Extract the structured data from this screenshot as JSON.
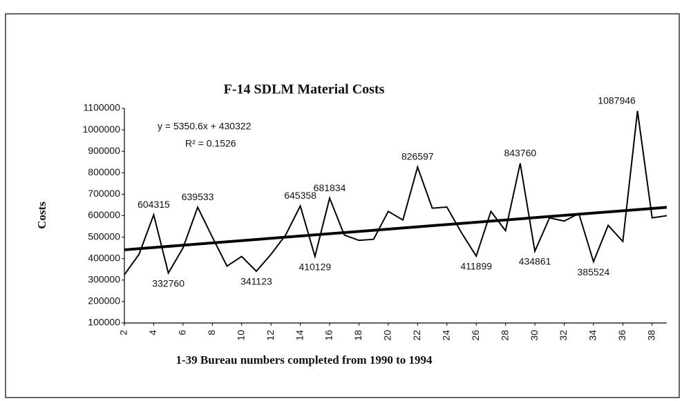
{
  "chart_data": {
    "type": "line",
    "title": "F-14 SDLM Material Costs",
    "x_label": "1-39 Bureau numbers completed from 1990 to 1994",
    "y_label": "Costs",
    "x": [
      2,
      3,
      4,
      5,
      6,
      7,
      8,
      9,
      10,
      11,
      12,
      13,
      14,
      15,
      16,
      17,
      18,
      19,
      20,
      21,
      22,
      23,
      24,
      25,
      26,
      27,
      28,
      29,
      30,
      31,
      32,
      33,
      34,
      35,
      36,
      37,
      38,
      39
    ],
    "values": [
      325000,
      420000,
      604315,
      332760,
      450000,
      639533,
      500000,
      365000,
      410000,
      341123,
      420000,
      510000,
      645358,
      410129,
      681834,
      510000,
      485000,
      490000,
      620000,
      580000,
      826597,
      635000,
      640000,
      520000,
      411899,
      620000,
      530000,
      843760,
      434861,
      590000,
      575000,
      610000,
      385524,
      555000,
      480000,
      1087946,
      590000,
      600000
    ],
    "value_labels": [
      null,
      null,
      "604315",
      "332760",
      null,
      "639533",
      null,
      null,
      null,
      "341123",
      null,
      null,
      "645358",
      "410129",
      "681834",
      null,
      null,
      null,
      null,
      null,
      "826597",
      null,
      null,
      null,
      "411899",
      null,
      null,
      "843760",
      "434861",
      null,
      null,
      null,
      "385524",
      null,
      null,
      "1087946",
      null,
      null
    ],
    "color": "#000000",
    "trendline": {
      "slope": 5350.6,
      "intercept": 430322,
      "equation": "y = 5350.6x + 430322",
      "r_squared": "R² = 0.1526"
    },
    "xlim": [
      2,
      39
    ],
    "xticks": [
      2,
      4,
      6,
      8,
      10,
      12,
      14,
      16,
      18,
      20,
      22,
      24,
      26,
      28,
      30,
      32,
      34,
      36,
      38
    ],
    "ylim": [
      100000,
      1100000
    ],
    "yticks": [
      100000,
      200000,
      300000,
      400000,
      500000,
      600000,
      700000,
      800000,
      900000,
      1000000,
      1100000
    ],
    "grid": false
  }
}
